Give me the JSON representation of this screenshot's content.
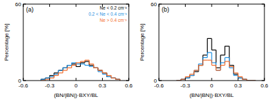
{
  "chart_data": [
    {
      "type": "histogram",
      "title": "(a)",
      "x_label": "(BN/|BN|)·BXY/BL",
      "y_label": "Percentage [%]",
      "bins": [
        -0.4,
        -0.35,
        -0.3,
        -0.25,
        -0.2,
        -0.15,
        -0.1,
        -0.05,
        0,
        0.05,
        0.1,
        0.15,
        0.2,
        0.25,
        0.3,
        0.35,
        0.4,
        0.45,
        0.5
      ],
      "series": [
        {
          "name": "Ne < 0.2 cm⁻³",
          "color": "#000000",
          "values": [
            1,
            2,
            4,
            6,
            8,
            10,
            12,
            13,
            11,
            14,
            15,
            12,
            10,
            8,
            6,
            3,
            2,
            1
          ]
        },
        {
          "name": "0.2 < Ne < 0.4 cm⁻³",
          "color": "#1f8fe0",
          "values": [
            1,
            2,
            3,
            5,
            8,
            10,
            12,
            14,
            13,
            13,
            12,
            11,
            10,
            7,
            5,
            3,
            2,
            1
          ]
        },
        {
          "name": "Ne > 0.4 cm⁻³",
          "color": "#f26b2a",
          "values": [
            0,
            1,
            2,
            4,
            6,
            8,
            10,
            12,
            14,
            15,
            16,
            13,
            10,
            8,
            6,
            4,
            2,
            1
          ]
        }
      ],
      "xlim": [
        -0.6,
        0.6
      ],
      "ylim": [
        0,
        60
      ],
      "xticks": [
        -0.6,
        -0.3,
        0,
        0.3,
        0.6
      ],
      "yticks": [
        0,
        60
      ],
      "legend": "upper right"
    },
    {
      "type": "histogram",
      "title": "(b)",
      "x_label": "(BN/|BN|)·BXY/BL",
      "y_label": "Percentage [%]",
      "bins": [
        -0.4,
        -0.35,
        -0.3,
        -0.25,
        -0.2,
        -0.15,
        -0.1,
        -0.05,
        0,
        0.05,
        0.1,
        0.15,
        0.2,
        0.25,
        0.3,
        0.35,
        0.4,
        0.45,
        0.5
      ],
      "series": [
        {
          "color": "#000000",
          "values": [
            0,
            1,
            2,
            4,
            7,
            12,
            20,
            33,
            24,
            10,
            20,
            27,
            12,
            5,
            2,
            1,
            0,
            0
          ]
        },
        {
          "color": "#1f8fe0",
          "values": [
            0,
            1,
            2,
            4,
            8,
            13,
            18,
            22,
            14,
            8,
            14,
            18,
            10,
            4,
            2,
            1,
            0,
            0
          ]
        },
        {
          "color": "#f26b2a",
          "values": [
            0,
            1,
            3,
            5,
            8,
            12,
            16,
            16,
            12,
            8,
            12,
            15,
            11,
            6,
            3,
            1,
            0,
            0
          ]
        }
      ],
      "xlim": [
        -0.6,
        0.6
      ],
      "ylim": [
        0,
        60
      ],
      "xticks": [
        -0.6,
        -0.3,
        0,
        0.3,
        0.6
      ],
      "yticks": [
        0,
        60
      ]
    }
  ]
}
